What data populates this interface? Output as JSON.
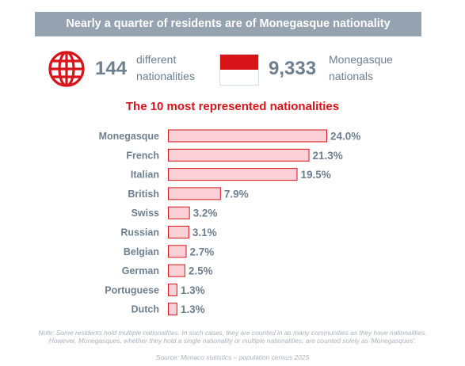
{
  "header": {
    "title": "Nearly a quarter of residents are of Monegasque nationality"
  },
  "stats": {
    "nationalities": {
      "icon": "globe-icon",
      "value": "144",
      "label_line1": "different",
      "label_line2": "nationalities"
    },
    "monegasques": {
      "icon": "monaco-flag-icon",
      "value": "9,333",
      "label_line1": "Monegasque",
      "label_line2": "nationals"
    }
  },
  "colors": {
    "accent": "#d7141a",
    "bar_fill": "#fbd0d6",
    "bar_stroke": "#d7141a",
    "text": "#6e7f90",
    "banner": "#95a3b1"
  },
  "chart_data": {
    "type": "bar",
    "orientation": "horizontal",
    "title": "The 10 most represented nationalities",
    "categories": [
      "Monegasque",
      "French",
      "Italian",
      "British",
      "Swiss",
      "Russian",
      "Belgian",
      "German",
      "Portuguese",
      "Dutch"
    ],
    "values": [
      24.0,
      21.3,
      19.5,
      7.9,
      3.2,
      3.1,
      2.7,
      2.5,
      1.3,
      1.3
    ],
    "value_labels": [
      "24.0%",
      "21.3%",
      "19.5%",
      "7.9%",
      "3.2%",
      "3.1%",
      "2.7%",
      "2.5%",
      "1.3%",
      "1.3%"
    ],
    "unit": "%",
    "xlim": [
      0,
      24.0
    ],
    "grid": false,
    "legend": "none"
  },
  "footer": {
    "note": "Note: Some residents hold multiple nationalities. In such cases, they are counted in as many communities as they have nationalities. However, Monegasques, whether they hold a single nationality or multiple nationalities, are counted solely as 'Monegasques'.",
    "source": "Source: Monaco statistics – population census 2025"
  }
}
